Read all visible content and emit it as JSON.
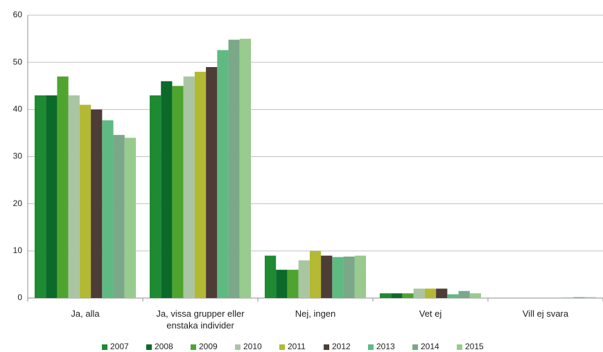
{
  "chart_data": {
    "type": "bar",
    "categories": [
      "Ja, alla",
      "Ja, vissa grupper eller enstaka individer",
      "Nej, ingen",
      "Vet ej",
      "Vill ej svara"
    ],
    "series": [
      {
        "name": "2007",
        "color": "#1e8a32",
        "values": [
          43,
          43,
          9,
          1,
          0
        ]
      },
      {
        "name": "2008",
        "color": "#0b6a2a",
        "values": [
          43,
          46,
          6,
          1,
          0
        ]
      },
      {
        "name": "2009",
        "color": "#4fa430",
        "values": [
          47,
          45,
          6,
          1,
          0
        ]
      },
      {
        "name": "2010",
        "color": "#aac5a2",
        "values": [
          43,
          47,
          8,
          2,
          0
        ]
      },
      {
        "name": "2011",
        "color": "#b3b933",
        "values": [
          41,
          48,
          10,
          2,
          0
        ]
      },
      {
        "name": "2012",
        "color": "#4e3c37",
        "values": [
          40,
          49,
          9,
          2,
          0
        ]
      },
      {
        "name": "2013",
        "color": "#5fba82",
        "values": [
          37.7,
          52.6,
          8.7,
          0.8,
          0.1
        ]
      },
      {
        "name": "2014",
        "color": "#7aa889",
        "values": [
          34.6,
          54.8,
          8.8,
          1.5,
          0.2
        ]
      },
      {
        "name": "2015",
        "color": "#98cb8d",
        "values": [
          34,
          55,
          9,
          1,
          0.2
        ]
      }
    ],
    "ylim": [
      0,
      60
    ],
    "yticks": [
      0,
      10,
      20,
      30,
      40,
      50,
      60
    ],
    "grid": true,
    "legend": "bottom"
  }
}
